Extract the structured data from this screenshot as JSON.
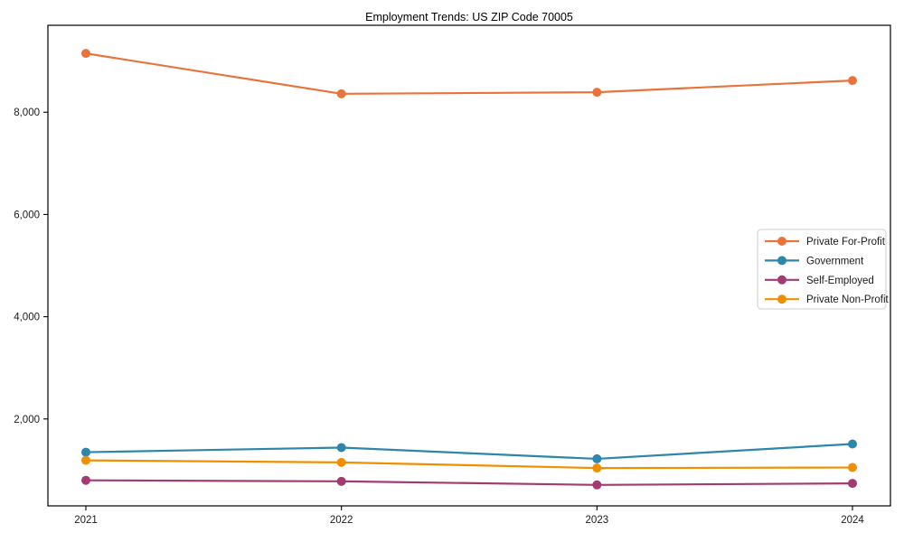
{
  "title": "Employment Trends: US ZIP Code 70005",
  "chart_data": {
    "type": "line",
    "title": "Employment Trends: US ZIP Code 70005",
    "xlabel": "",
    "ylabel": "",
    "x": [
      2021,
      2022,
      2023,
      2024
    ],
    "xtick_labels": [
      "2021",
      "2022",
      "2023",
      "2024"
    ],
    "yticks": [
      2000,
      4000,
      6000,
      8000
    ],
    "ytick_labels": [
      "2,000",
      "4,000",
      "6,000",
      "8,000"
    ],
    "ylim": [
      300,
      9700
    ],
    "grid": false,
    "marker": "circle",
    "legend_position": "center right",
    "series": [
      {
        "name": "Private For-Profit",
        "color": "#E8743B",
        "values": [
          9150,
          8360,
          8390,
          8620
        ]
      },
      {
        "name": "Government",
        "color": "#2E86AB",
        "values": [
          1350,
          1440,
          1220,
          1510
        ]
      },
      {
        "name": "Self-Employed",
        "color": "#A23B72",
        "values": [
          800,
          780,
          710,
          740
        ]
      },
      {
        "name": "Private Non-Profit",
        "color": "#F18F01",
        "values": [
          1190,
          1150,
          1040,
          1050
        ]
      }
    ]
  }
}
